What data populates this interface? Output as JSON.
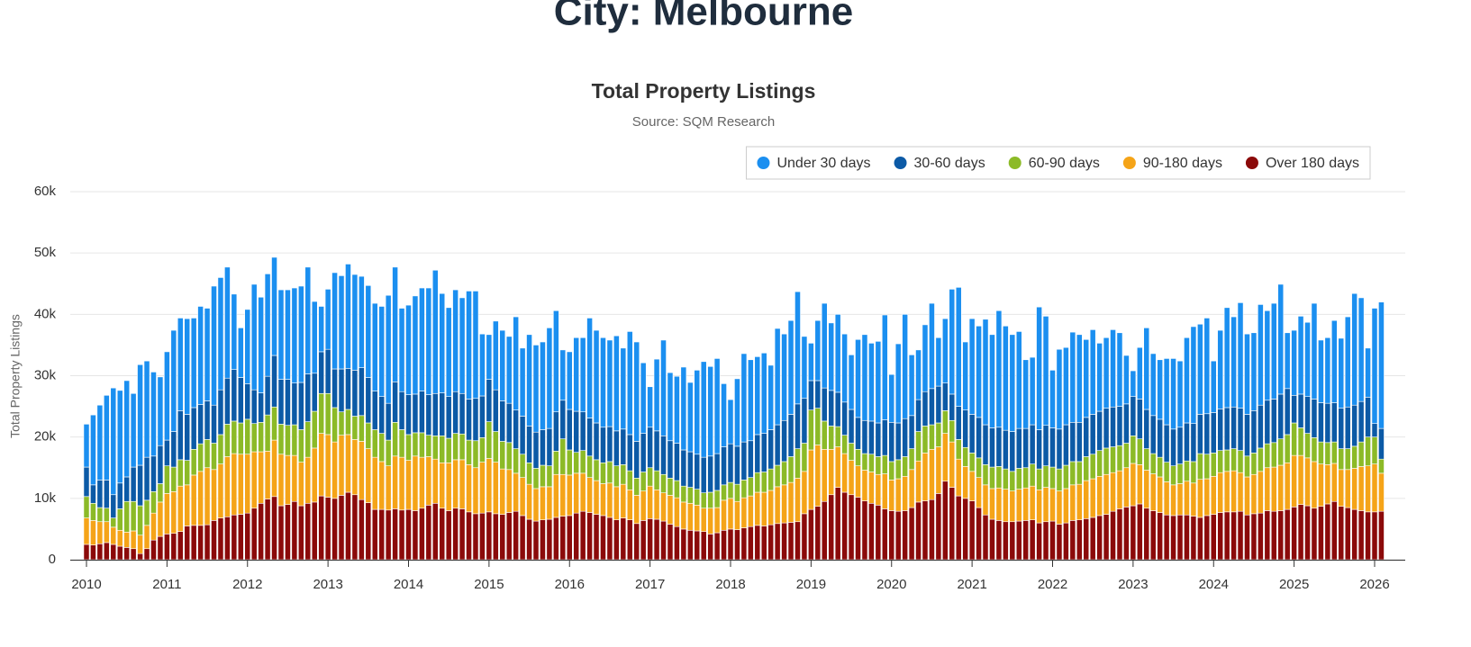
{
  "header": {
    "title": "City: Melbourne"
  },
  "chart_data": {
    "type": "bar",
    "stacked": true,
    "title": "Total Property Listings",
    "subtitle": "Source: SQM Research",
    "y_label": "Total Property Listings",
    "legend": "top-right",
    "grid": true,
    "ylim": [
      0,
      60000
    ],
    "yticks": [
      0,
      {
        "value": 10000,
        "label": "10k"
      },
      {
        "value": 20000,
        "label": "20k"
      },
      {
        "value": 30000,
        "label": "30k"
      },
      {
        "value": 40000,
        "label": "40k"
      },
      {
        "value": 50000,
        "label": "50k"
      },
      {
        "value": 60000,
        "label": "60k"
      }
    ],
    "categories": [
      "2010",
      null,
      null,
      null,
      null,
      null,
      null,
      null,
      null,
      null,
      null,
      null,
      "2011",
      null,
      null,
      null,
      null,
      null,
      null,
      null,
      null,
      null,
      null,
      null,
      "2012",
      null,
      null,
      null,
      null,
      null,
      null,
      null,
      null,
      null,
      null,
      null,
      "2013",
      null,
      null,
      null,
      null,
      null,
      null,
      null,
      null,
      null,
      null,
      null,
      "2014",
      null,
      null,
      null,
      null,
      null,
      null,
      null,
      null,
      null,
      null,
      null,
      "2015",
      null,
      null,
      null,
      null,
      null,
      null,
      null,
      null,
      null,
      null,
      null,
      "2016",
      null,
      null,
      null,
      null,
      null,
      null,
      null,
      null,
      null,
      null,
      null,
      "2017",
      null,
      null,
      null,
      null,
      null,
      null,
      null,
      null,
      null,
      null,
      null,
      "2018",
      null,
      null,
      null,
      null,
      null,
      null,
      null,
      null,
      null,
      null,
      null,
      "2019",
      null,
      null,
      null,
      null,
      null,
      null,
      null,
      null,
      null,
      null,
      null,
      "2020",
      null,
      null,
      null,
      null,
      null,
      null,
      null,
      null,
      null,
      null,
      null,
      "2021",
      null,
      null,
      null,
      null,
      null,
      null,
      null,
      null,
      null,
      null,
      null,
      "2022",
      null,
      null,
      null,
      null,
      null,
      null,
      null,
      null,
      null,
      null,
      null,
      "2023",
      null,
      null,
      null,
      null,
      null,
      null,
      null,
      null,
      null,
      null,
      null,
      "2024",
      null,
      null,
      null,
      null,
      null,
      null,
      null,
      null,
      null,
      null,
      null,
      "2025",
      null,
      null,
      null,
      null,
      null,
      null,
      null,
      null,
      null,
      null,
      null,
      "2026",
      null
    ],
    "series": [
      {
        "name": "Under 30 days",
        "color": "#1b8ff0",
        "values": [
          7000,
          11400,
          12200,
          13800,
          17400,
          15100,
          15700,
          12000,
          16400,
          15700,
          13700,
          11200,
          14400,
          16500,
          15100,
          15600,
          14600,
          16000,
          15100,
          19400,
          18300,
          18100,
          12300,
          8100,
          12100,
          17200,
          15600,
          16700,
          16000,
          14600,
          14600,
          15500,
          15700,
          17400,
          11700,
          7400,
          9800,
          15700,
          15200,
          17000,
          15600,
          14900,
          15000,
          14300,
          14700,
          17600,
          18700,
          13600,
          14600,
          16000,
          16800,
          17400,
          20100,
          16200,
          14500,
          16600,
          15600,
          17600,
          17500,
          10100,
          7300,
          11200,
          11500,
          10900,
          15200,
          11100,
          14900,
          14200,
          14300,
          16400,
          16500,
          8200,
          9400,
          12000,
          12100,
          16300,
          15100,
          14600,
          14100,
          15500,
          13200,
          16800,
          16200,
          11500,
          6600,
          11700,
          15600,
          11100,
          10900,
          13500,
          11300,
          13700,
          15600,
          14600,
          15500,
          10300,
          7200,
          11000,
          14400,
          13200,
          12700,
          13100,
          10500,
          15700,
          14100,
          15300,
          18300,
          10100,
          6100,
          9800,
          13800,
          11000,
          12700,
          11100,
          8900,
          12700,
          14000,
          12700,
          13300,
          17100,
          7800,
          12900,
          17000,
          9900,
          8100,
          10900,
          13900,
          7900,
          10500,
          17100,
          19400,
          11100,
          15600,
          14900,
          17200,
          15200,
          19000,
          17000,
          15800,
          15800,
          11200,
          11000,
          20000,
          17800,
          9400,
          13000,
          12600,
          14700,
          14300,
          12700,
          13800,
          11100,
          11500,
          12600,
          12000,
          7900,
          4200,
          8400,
          13300,
          10100,
          9700,
          10800,
          11500,
          10800,
          13900,
          15800,
          14700,
          15600,
          8400,
          12800,
          16300,
          14700,
          17200,
          13100,
          12700,
          16400,
          14600,
          15600,
          17900,
          9100,
          10600,
          12700,
          12100,
          15600,
          10200,
          10700,
          13400,
          11400,
          14700,
          18200,
          16900,
          8000,
          18800,
          20600
        ]
      },
      {
        "name": "30-60 days",
        "color": "#0c5aa6",
        "values": [
          4800,
          3000,
          4500,
          4600,
          3800,
          4200,
          4000,
          5600,
          6600,
          7000,
          5800,
          6200,
          4200,
          5800,
          8000,
          7500,
          6800,
          6400,
          6300,
          6200,
          7300,
          7500,
          8400,
          7400,
          5800,
          5500,
          4800,
          6300,
          8400,
          7300,
          7500,
          6800,
          7700,
          7800,
          6200,
          6800,
          7200,
          6300,
          7000,
          6700,
          7500,
          7800,
          7400,
          6300,
          6000,
          6000,
          6600,
          6200,
          6500,
          6300,
          6800,
          6600,
          6900,
          7000,
          6800,
          6800,
          6600,
          6700,
          6900,
          6800,
          6900,
          6800,
          6600,
          6400,
          6300,
          6200,
          6000,
          5900,
          5800,
          6100,
          6400,
          6300,
          6600,
          6700,
          6300,
          6200,
          6000,
          5800,
          5700,
          5700,
          5800,
          5900,
          6000,
          6300,
          6600,
          6500,
          6300,
          6100,
          6100,
          5900,
          5800,
          5700,
          5800,
          5900,
          6000,
          6200,
          6300,
          6200,
          6200,
          6000,
          6200,
          6300,
          6400,
          6600,
          6700,
          6900,
          7300,
          7300,
          4800,
          4500,
          5400,
          5800,
          5600,
          5400,
          5500,
          5200,
          5400,
          5400,
          5500,
          5800,
          6400,
          6000,
          6200,
          5400,
          5200,
          5600,
          5900,
          6000,
          4500,
          4300,
          5400,
          6100,
          6300,
          6600,
          6500,
          6400,
          6400,
          6300,
          6500,
          6500,
          6400,
          6400,
          6400,
          6600,
          6400,
          6500,
          6600,
          6400,
          6400,
          6400,
          6500,
          6400,
          6500,
          6500,
          6400,
          6400,
          6400,
          6500,
          6400,
          6200,
          6200,
          6100,
          6000,
          6000,
          6200,
          6200,
          6400,
          6600,
          6600,
          6800,
          6900,
          6800,
          6900,
          6800,
          6900,
          7000,
          7100,
          7100,
          7300,
          7500,
          4500,
          5500,
          6000,
          6300,
          6400,
          6400,
          6400,
          6600,
          6800,
          6700,
          6600,
          6500,
          2200,
          5000
        ]
      },
      {
        "name": "60-90 days",
        "color": "#8cba27",
        "values": [
          3500,
          2800,
          2300,
          2200,
          1500,
          3500,
          5000,
          4800,
          4800,
          4100,
          3500,
          3000,
          4500,
          4000,
          4300,
          4000,
          4200,
          4500,
          4600,
          4300,
          4800,
          5300,
          5300,
          5100,
          5700,
          4600,
          4800,
          5900,
          5400,
          4900,
          4900,
          5000,
          5300,
          5800,
          6000,
          6500,
          6700,
          5600,
          3800,
          4100,
          3800,
          4200,
          4200,
          4500,
          4600,
          4200,
          5500,
          4500,
          4200,
          3800,
          4000,
          3500,
          3800,
          4400,
          4000,
          4300,
          4200,
          4000,
          4400,
          4000,
          6000,
          5000,
          4500,
          4400,
          4000,
          3800,
          3500,
          3300,
          3500,
          3400,
          3800,
          5800,
          4100,
          3400,
          3700,
          3500,
          3400,
          3400,
          3500,
          3400,
          3200,
          3100,
          2800,
          3100,
          3000,
          3100,
          3000,
          2800,
          2800,
          2600,
          2600,
          2600,
          2500,
          2600,
          2800,
          2500,
          2600,
          2800,
          2900,
          3000,
          3200,
          3300,
          3500,
          3500,
          3800,
          4200,
          4800,
          4600,
          6500,
          6000,
          4600,
          3800,
          3300,
          3000,
          2800,
          2700,
          2700,
          2900,
          2900,
          3000,
          3000,
          3100,
          3200,
          3400,
          4800,
          4400,
          4000,
          3900,
          3700,
          3500,
          3200,
          3100,
          3000,
          3200,
          3300,
          3500,
          3500,
          3300,
          3200,
          3400,
          3300,
          3600,
          3400,
          3500,
          3500,
          3600,
          3800,
          3800,
          3700,
          3900,
          4000,
          4200,
          4300,
          4200,
          4100,
          4000,
          4500,
          4200,
          3500,
          3300,
          3200,
          3200,
          3100,
          3200,
          3300,
          3500,
          4200,
          4000,
          3800,
          3600,
          3500,
          3600,
          3600,
          3400,
          3500,
          3800,
          3900,
          4000,
          4300,
          4600,
          5300,
          4500,
          4000,
          3900,
          3600,
          3600,
          3500,
          3400,
          3400,
          3600,
          4000,
          4700,
          4400,
          2300
        ]
      },
      {
        "name": "90-180 days",
        "color": "#f5a418",
        "values": [
          4300,
          4000,
          3600,
          3400,
          2800,
          2600,
          2500,
          2900,
          3000,
          3800,
          4400,
          5600,
          6600,
          6800,
          7400,
          6700,
          8200,
          8800,
          9300,
          8300,
          8800,
          9800,
          10000,
          9800,
          9600,
          9200,
          8400,
          7800,
          9200,
          8400,
          8000,
          7500,
          7100,
          7500,
          8800,
          10200,
          10200,
          9200,
          9800,
          9400,
          9000,
          9500,
          8800,
          8500,
          7800,
          7200,
          8600,
          8600,
          8000,
          8900,
          8300,
          7900,
          7200,
          7400,
          7800,
          7900,
          8000,
          7700,
          7500,
          8300,
          8700,
          8400,
          7400,
          7000,
          6200,
          6200,
          5700,
          5300,
          5400,
          5300,
          7000,
          6800,
          6600,
          6500,
          6200,
          5700,
          5500,
          5200,
          5600,
          5400,
          5500,
          4900,
          4600,
          4800,
          5300,
          4800,
          4600,
          4700,
          4700,
          4400,
          4400,
          4200,
          3800,
          4200,
          4100,
          4900,
          5000,
          4600,
          4900,
          5000,
          5400,
          5500,
          5600,
          6000,
          6200,
          6500,
          7100,
          6900,
          9700,
          10000,
          8500,
          7400,
          6600,
          6300,
          5600,
          5100,
          5000,
          5100,
          5000,
          5700,
          5000,
          5300,
          5600,
          6200,
          6700,
          7800,
          8200,
          7600,
          7800,
          7400,
          6000,
          5200,
          4800,
          4900,
          4900,
          5000,
          5300,
          5300,
          5000,
          5200,
          5300,
          5500,
          5400,
          5600,
          5300,
          5400,
          5600,
          5800,
          5800,
          6200,
          6300,
          6400,
          6500,
          6300,
          6200,
          6400,
          6900,
          6400,
          6200,
          6000,
          5800,
          5400,
          5000,
          5100,
          5500,
          5400,
          6200,
          6000,
          6200,
          6500,
          6600,
          6700,
          6300,
          6200,
          6400,
          6800,
          7000,
          7200,
          7400,
          7600,
          8400,
          8000,
          7800,
          7600,
          6900,
          6400,
          6200,
          6000,
          6200,
          6700,
          7200,
          7500,
          7800,
          6200
        ]
      },
      {
        "name": "Over 180 days",
        "color": "#8b0a0a",
        "values": [
          2500,
          2400,
          2600,
          2800,
          2500,
          2200,
          2000,
          1800,
          1000,
          1800,
          3200,
          3800,
          4200,
          4300,
          4600,
          5500,
          5600,
          5600,
          5700,
          6400,
          6800,
          7000,
          7300,
          7400,
          7600,
          8400,
          9200,
          9900,
          10300,
          8800,
          9000,
          9500,
          8800,
          9200,
          9400,
          10400,
          10200,
          10000,
          10500,
          11000,
          10600,
          9800,
          9300,
          8200,
          8200,
          8100,
          8300,
          8100,
          8200,
          8000,
          8400,
          8900,
          9200,
          8400,
          8000,
          8400,
          8300,
          7800,
          7500,
          7600,
          7800,
          7500,
          7400,
          7700,
          7900,
          7200,
          6600,
          6300,
          6500,
          6600,
          6900,
          7100,
          7200,
          7600,
          7900,
          7700,
          7400,
          7200,
          6900,
          6500,
          6800,
          6500,
          5900,
          6400,
          6700,
          6600,
          6300,
          5800,
          5400,
          5000,
          4800,
          4700,
          4600,
          4200,
          4400,
          4800,
          5000,
          4900,
          5200,
          5400,
          5600,
          5500,
          5700,
          5900,
          6000,
          6100,
          6200,
          7500,
          8200,
          8700,
          9500,
          10600,
          11800,
          11000,
          10600,
          10200,
          9600,
          9200,
          8900,
          8300,
          8000,
          7900,
          8000,
          8500,
          9400,
          9600,
          9800,
          10800,
          12800,
          11800,
          10400,
          10000,
          9600,
          8500,
          7300,
          6600,
          6400,
          6200,
          6200,
          6300,
          6400,
          6500,
          6000,
          6200,
          6300,
          5800,
          6000,
          6400,
          6500,
          6700,
          6900,
          7200,
          7400,
          7900,
          8300,
          8600,
          8800,
          9100,
          8400,
          8000,
          7700,
          7300,
          7200,
          7300,
          7300,
          7100,
          6900,
          7200,
          7400,
          7700,
          7800,
          7800,
          7900,
          7300,
          7500,
          7600,
          8000,
          7900,
          8000,
          8200,
          8600,
          9000,
          8800,
          8400,
          8700,
          9100,
          9500,
          8700,
          8500,
          8200,
          8000,
          7800,
          7800,
          7900
        ]
      }
    ]
  }
}
